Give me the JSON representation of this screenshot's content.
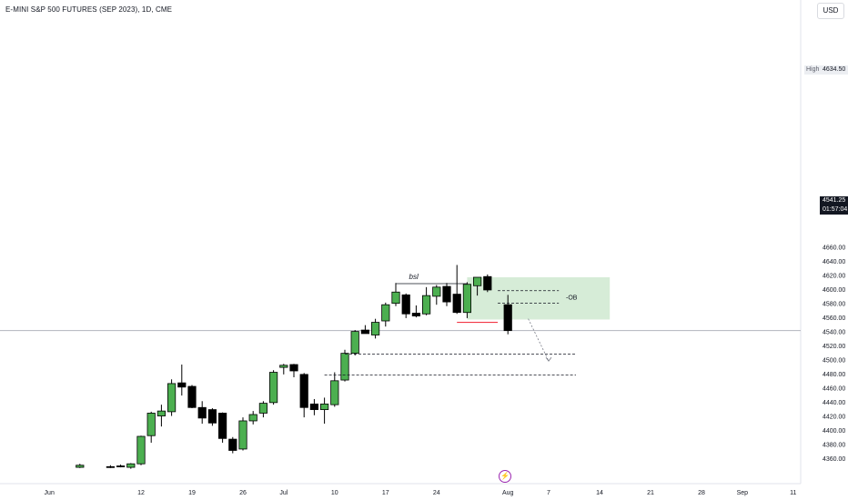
{
  "header": {
    "symbol_title": "E-MINI S&P 500 FUTURES (SEP 2023), 1D, CME",
    "currency_button": "USD"
  },
  "price_scale": {
    "high_label": "High",
    "high_value": "4634.50",
    "last_price": "4541.25",
    "countdown": "01:57:04"
  },
  "events": {
    "icon": "lightning-icon",
    "glyph": "⚡"
  },
  "colors": {
    "up": "#4caf50",
    "down": "#000000",
    "zone": "#c8e6c9",
    "red_line": "#f23645"
  },
  "chart_data": {
    "type": "candlestick",
    "title": "E-MINI S&P 500 FUTURES (SEP 2023), 1D, CME",
    "ylim": [
      4346,
      4670
    ],
    "y_ticks": [
      4360,
      4380,
      4400,
      4420,
      4440,
      4460,
      4480,
      4500,
      4520,
      4540,
      4560,
      4580,
      4600,
      4620,
      4640,
      4660
    ],
    "x_ticks": [
      {
        "label": "Jun",
        "day": -9
      },
      {
        "label": "12",
        "day": 0
      },
      {
        "label": "19",
        "day": 5
      },
      {
        "label": "26",
        "day": 10
      },
      {
        "label": "Jul",
        "day": 14
      },
      {
        "label": "10",
        "day": 19
      },
      {
        "label": "17",
        "day": 24
      },
      {
        "label": "24",
        "day": 29
      },
      {
        "label": "Aug",
        "day": 36
      },
      {
        "label": "7",
        "day": 40
      },
      {
        "label": "14",
        "day": 45
      },
      {
        "label": "21",
        "day": 50
      },
      {
        "label": "28",
        "day": 55
      },
      {
        "label": "Sep",
        "day": 59
      },
      {
        "label": "11",
        "day": 64
      }
    ],
    "candles": [
      {
        "day": -6,
        "open": 4347,
        "high": 4352,
        "low": 4346,
        "close": 4350
      },
      {
        "day": -3,
        "open": 4348,
        "high": 4350,
        "low": 4346,
        "close": 4347
      },
      {
        "day": -2,
        "open": 4349,
        "high": 4351,
        "low": 4347,
        "close": 4348
      },
      {
        "day": -1,
        "open": 4347,
        "high": 4353,
        "low": 4345,
        "close": 4352
      },
      {
        "day": 0,
        "open": 4352,
        "high": 4392,
        "low": 4350,
        "close": 4391
      },
      {
        "day": 1,
        "open": 4392,
        "high": 4426,
        "low": 4382,
        "close": 4424
      },
      {
        "day": 2,
        "open": 4420,
        "high": 4436,
        "low": 4405,
        "close": 4427
      },
      {
        "day": 3,
        "open": 4426,
        "high": 4472,
        "low": 4420,
        "close": 4466
      },
      {
        "day": 4,
        "open": 4467,
        "high": 4493,
        "low": 4449,
        "close": 4461
      },
      {
        "day": 5,
        "open": 4462,
        "high": 4464,
        "low": 4431,
        "close": 4432
      },
      {
        "day": 6,
        "open": 4432,
        "high": 4441,
        "low": 4409,
        "close": 4417
      },
      {
        "day": 7,
        "open": 4429,
        "high": 4431,
        "low": 4406,
        "close": 4410
      },
      {
        "day": 8,
        "open": 4424,
        "high": 4425,
        "low": 4382,
        "close": 4388
      },
      {
        "day": 9,
        "open": 4387,
        "high": 4390,
        "low": 4367,
        "close": 4371
      },
      {
        "day": 10,
        "open": 4373,
        "high": 4418,
        "low": 4371,
        "close": 4413
      },
      {
        "day": 11,
        "open": 4413,
        "high": 4427,
        "low": 4408,
        "close": 4422
      },
      {
        "day": 12,
        "open": 4424,
        "high": 4441,
        "low": 4418,
        "close": 4438
      },
      {
        "day": 13,
        "open": 4439,
        "high": 4485,
        "low": 4436,
        "close": 4482
      },
      {
        "day": 14,
        "open": 4489,
        "high": 4494,
        "low": 4479,
        "close": 4492
      },
      {
        "day": 15,
        "open": 4493,
        "high": 4494,
        "low": 4475,
        "close": 4484
      },
      {
        "day": 16,
        "open": 4479,
        "high": 4481,
        "low": 4418,
        "close": 4432
      },
      {
        "day": 17,
        "open": 4437,
        "high": 4444,
        "low": 4421,
        "close": 4429
      },
      {
        "day": 18,
        "open": 4429,
        "high": 4446,
        "low": 4409,
        "close": 4437
      },
      {
        "day": 19,
        "open": 4436,
        "high": 4482,
        "low": 4433,
        "close": 4470
      },
      {
        "day": 20,
        "open": 4471,
        "high": 4514,
        "low": 4469,
        "close": 4509
      },
      {
        "day": 21,
        "open": 4509,
        "high": 4542,
        "low": 4506,
        "close": 4540
      },
      {
        "day": 22,
        "open": 4542,
        "high": 4549,
        "low": 4537,
        "close": 4537
      },
      {
        "day": 23,
        "open": 4535,
        "high": 4558,
        "low": 4530,
        "close": 4553
      },
      {
        "day": 24,
        "open": 4555,
        "high": 4581,
        "low": 4547,
        "close": 4578
      },
      {
        "day": 25,
        "open": 4580,
        "high": 4609,
        "low": 4576,
        "close": 4596
      },
      {
        "day": 26,
        "open": 4592,
        "high": 4594,
        "low": 4559,
        "close": 4565
      },
      {
        "day": 27,
        "open": 4566,
        "high": 4577,
        "low": 4560,
        "close": 4562
      },
      {
        "day": 28,
        "open": 4565,
        "high": 4603,
        "low": 4563,
        "close": 4591
      },
      {
        "day": 29,
        "open": 4590,
        "high": 4606,
        "low": 4578,
        "close": 4603
      },
      {
        "day": 30,
        "open": 4604,
        "high": 4609,
        "low": 4576,
        "close": 4582
      },
      {
        "day": 31,
        "open": 4593,
        "high": 4634.5,
        "low": 4565,
        "close": 4567
      },
      {
        "day": 32,
        "open": 4567,
        "high": 4610,
        "low": 4559,
        "close": 4607
      },
      {
        "day": 33,
        "open": 4605,
        "high": 4617,
        "low": 4591,
        "close": 4617
      },
      {
        "day": 34,
        "open": 4618,
        "high": 4621,
        "low": 4596,
        "close": 4599
      },
      {
        "day": 36,
        "open": 4578,
        "high": 4592,
        "low": 4536,
        "close": 4541.25
      }
    ],
    "annotations": {
      "bsl_label": "bsl",
      "ob_label": "-OB",
      "current_price": 4541.25,
      "bsl_level": 4608,
      "ob_zone": {
        "from_day": 32,
        "to_day": 46,
        "top": 4617,
        "bottom": 4557
      },
      "ob_levels": [
        4598,
        4580
      ],
      "red_line": {
        "from_day": 31,
        "to_day": 35,
        "level": 4553
      },
      "support_levels": [
        {
          "from_day": 20,
          "level": 4508
        },
        {
          "from_day": 18,
          "level": 4478
        }
      ],
      "projection": {
        "from_day": 38,
        "from_price": 4558,
        "to_day": 40,
        "to_price": 4498
      }
    }
  }
}
